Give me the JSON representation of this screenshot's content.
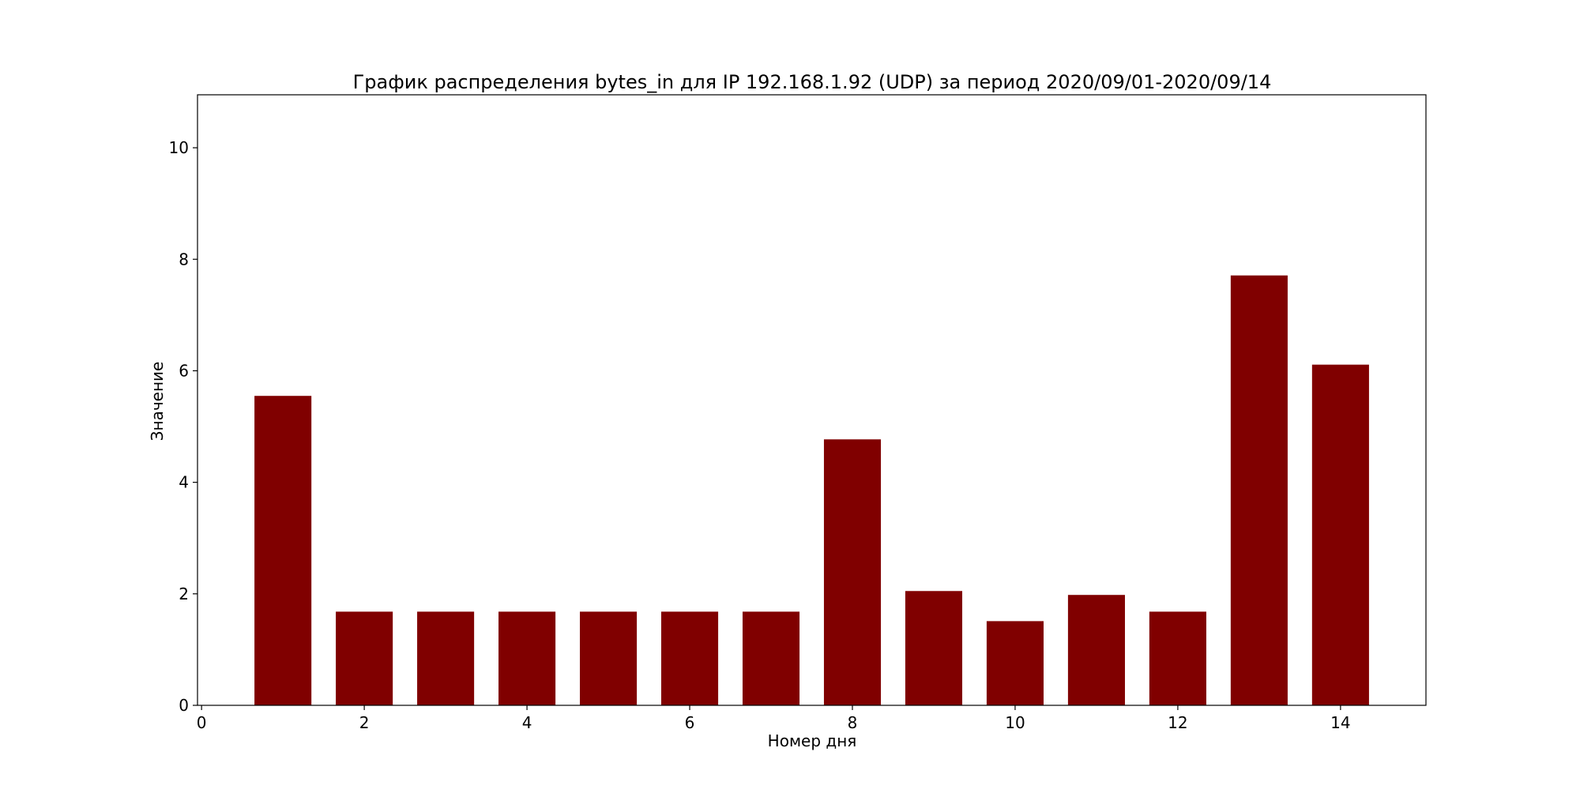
{
  "chart_data": {
    "type": "bar",
    "title": "График распределения bytes_in для IP 192.168.1.92 (UDP) за период 2020/09/01-2020/09/14",
    "xlabel": "Номер дня",
    "ylabel": "Значение",
    "x": [
      1,
      2,
      3,
      4,
      5,
      6,
      7,
      8,
      9,
      10,
      11,
      12,
      13,
      14
    ],
    "values": [
      5.55,
      1.68,
      1.68,
      1.68,
      1.68,
      1.68,
      1.68,
      4.77,
      2.05,
      1.51,
      1.98,
      1.68,
      7.71,
      6.11
    ],
    "bar_width": 0.7,
    "xlim": [
      -0.05,
      15.05
    ],
    "ylim": [
      0,
      10.95
    ],
    "xticks": [
      0,
      2,
      4,
      6,
      8,
      10,
      12,
      14
    ],
    "yticks": [
      0,
      2,
      4,
      6,
      8,
      10
    ],
    "bar_color": "#800000",
    "grid": false,
    "legend": "none"
  }
}
